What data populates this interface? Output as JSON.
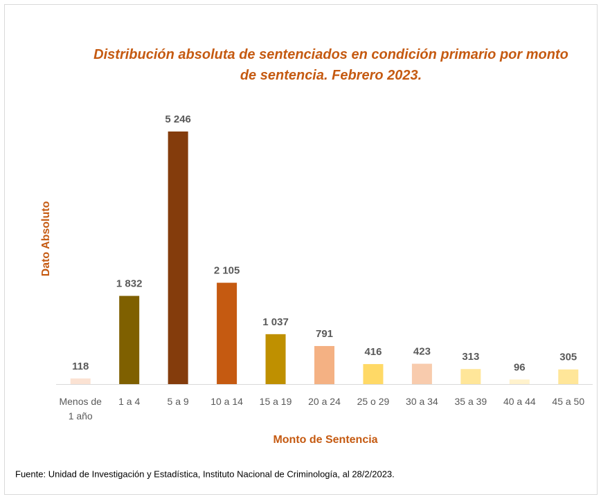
{
  "chart_data": {
    "type": "bar",
    "title": "Distribución absoluta de sentenciados en condición primario por monto de sentencia. Febrero 2023.",
    "ylabel": "Dato Absoluto",
    "xlabel": "Monto de Sentencia",
    "source": "Fuente: Unidad de Investigación y Estadística, Instituto Nacional de Criminología,  al 28/2/2023.",
    "categories": [
      "Menos de 1 año",
      "1 a 4",
      "5 a 9",
      "10 a 14",
      "15 a 19",
      "20 a 24",
      "25 o 29",
      "30 a 34",
      "35 a 39",
      "40 a 44",
      "45 a 50"
    ],
    "values": [
      118,
      1832,
      5246,
      2105,
      1037,
      791,
      416,
      423,
      313,
      96,
      305
    ],
    "value_labels": [
      "118",
      "1 832",
      "5 246",
      "2 105",
      "1 037",
      "791",
      "416",
      "423",
      "313",
      "96",
      "305"
    ],
    "colors": [
      "#fbe2d3",
      "#7f6000",
      "#843c0c",
      "#c55a11",
      "#bf9000",
      "#f4b183",
      "#ffd966",
      "#f8cbad",
      "#ffe699",
      "#fff2cc",
      "#ffe699"
    ]
  }
}
